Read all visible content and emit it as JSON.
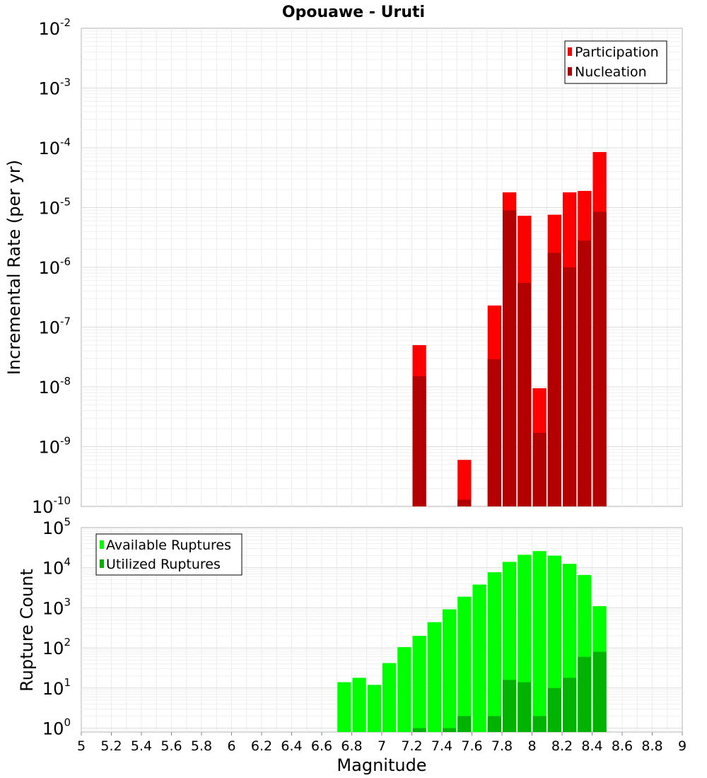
{
  "chart_data": [
    {
      "type": "bar",
      "title": "Opouawe - Uruti",
      "xlabel": "",
      "ylabel": "Incremental Rate (per yr)",
      "yscale": "log",
      "ylim": [
        1e-10,
        0.01
      ],
      "y_ticks": [
        {
          "base": "10",
          "exp": "-2"
        },
        {
          "base": "10",
          "exp": "-3"
        },
        {
          "base": "10",
          "exp": "-4"
        },
        {
          "base": "10",
          "exp": "-5"
        },
        {
          "base": "10",
          "exp": "-6"
        },
        {
          "base": "10",
          "exp": "-7"
        },
        {
          "base": "10",
          "exp": "-8"
        },
        {
          "base": "10",
          "exp": "-9"
        },
        {
          "base": "10",
          "exp": "-10"
        }
      ],
      "xlim": [
        5,
        9
      ],
      "bar_width": 0.1,
      "grid": true,
      "legend_position": "top-right",
      "series": [
        {
          "name": "Participation",
          "color": "#ff0000",
          "x": [
            7.25,
            7.55,
            7.75,
            7.85,
            7.95,
            8.05,
            8.15,
            8.25,
            8.35,
            8.45
          ],
          "values": [
            5e-08,
            6e-10,
            2.3e-07,
            1.8e-05,
            7.3e-06,
            9.5e-09,
            7.6e-06,
            1.8e-05,
            1.9e-05,
            8.5e-05
          ]
        },
        {
          "name": "Nucleation",
          "color": "#b30000",
          "x": [
            7.25,
            7.55,
            7.75,
            7.85,
            7.95,
            8.05,
            8.15,
            8.25,
            8.35,
            8.45
          ],
          "values": [
            1.5e-08,
            1.3e-10,
            2.9e-08,
            9e-06,
            5.5e-07,
            1.7e-09,
            1.75e-06,
            1e-06,
            2.8e-06,
            8.5e-06
          ]
        }
      ]
    },
    {
      "type": "bar",
      "title": "",
      "xlabel": "Magnitude",
      "ylabel": "Rupture Count",
      "yscale": "log",
      "ylim": [
        0.8,
        100000
      ],
      "y_ticks": [
        {
          "value": 100000,
          "base": "10",
          "exp": "5"
        },
        {
          "value": 10000,
          "base": "10",
          "exp": "4"
        },
        {
          "value": 1000,
          "base": "10",
          "exp": "3"
        },
        {
          "value": 100,
          "base": "10",
          "exp": "2"
        },
        {
          "value": 10,
          "base": "10",
          "exp": "1"
        },
        {
          "value": 1,
          "base": "10",
          "exp": "0"
        }
      ],
      "xlim": [
        5,
        9
      ],
      "x_ticks": [
        "5",
        "5.2",
        "5.4",
        "5.6",
        "5.8",
        "6",
        "6.2",
        "6.4",
        "6.6",
        "6.8",
        "7",
        "7.2",
        "7.4",
        "7.6",
        "7.8",
        "8",
        "8.2",
        "8.4",
        "8.6",
        "8.8",
        "9"
      ],
      "bar_width": 0.1,
      "grid": true,
      "legend_position": "top-left",
      "series": [
        {
          "name": "Available Ruptures",
          "color": "#00ff00",
          "x": [
            6.75,
            6.85,
            6.95,
            7.05,
            7.15,
            7.25,
            7.35,
            7.45,
            7.55,
            7.65,
            7.75,
            7.85,
            7.95,
            8.05,
            8.15,
            8.25,
            8.35,
            8.45
          ],
          "values": [
            14,
            18,
            12,
            42,
            105,
            200,
            440,
            920,
            1900,
            3800,
            7700,
            14000,
            21000,
            26000,
            20000,
            12500,
            6600,
            1100
          ]
        },
        {
          "name": "Utilized Ruptures",
          "color": "#00b300",
          "x": [
            7.25,
            7.45,
            7.55,
            7.75,
            7.85,
            7.95,
            8.05,
            8.15,
            8.25,
            8.35,
            8.45
          ],
          "values": [
            1,
            1,
            2,
            2,
            16,
            14,
            2,
            10,
            18,
            60,
            80
          ]
        }
      ]
    }
  ]
}
